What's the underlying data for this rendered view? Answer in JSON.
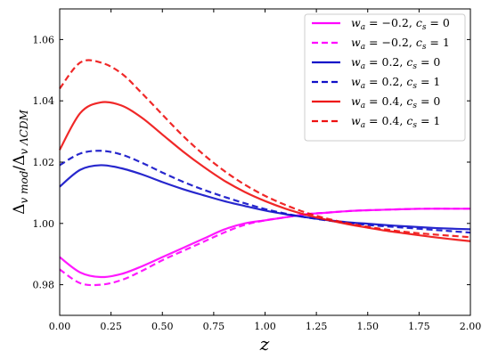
{
  "chart_data": {
    "type": "line",
    "xlabel": "z",
    "ylabel": "Δv mod/Δv ΛCDM",
    "xlim": [
      0.0,
      2.0
    ],
    "ylim": [
      0.97,
      1.07
    ],
    "xticks": [
      "0.00",
      "0.25",
      "0.50",
      "0.75",
      "1.00",
      "1.25",
      "1.50",
      "1.75",
      "2.00"
    ],
    "yticks": [
      "0.98",
      "1.00",
      "1.02",
      "1.04",
      "1.06"
    ],
    "grid": false,
    "legend_position": "top-right",
    "series": [
      {
        "name": "wa = −0.2, cs = 0",
        "color": "#ff00ff",
        "dash": "solid",
        "x": [
          0.0,
          0.1,
          0.2,
          0.3,
          0.4,
          0.5,
          0.6,
          0.7,
          0.8,
          0.9,
          1.0,
          1.1,
          1.2,
          1.3,
          1.4,
          1.5,
          1.6,
          1.7,
          1.8,
          1.9,
          2.0
        ],
        "y": [
          0.989,
          0.984,
          0.9825,
          0.9835,
          0.986,
          0.989,
          0.992,
          0.995,
          0.998,
          1.0,
          1.001,
          1.002,
          1.003,
          1.0035,
          1.004,
          1.0043,
          1.0045,
          1.0047,
          1.0048,
          1.0048,
          1.0048
        ]
      },
      {
        "name": "wa = −0.2, cs = 1",
        "color": "#ff00ff",
        "dash": "dashed",
        "x": [
          0.0,
          0.1,
          0.2,
          0.3,
          0.4,
          0.5,
          0.6,
          0.7,
          0.8,
          0.9,
          1.0,
          1.1,
          1.2,
          1.3,
          1.4,
          1.5,
          1.6,
          1.7,
          1.8,
          1.9,
          2.0
        ],
        "y": [
          0.985,
          0.9805,
          0.98,
          0.9815,
          0.9845,
          0.988,
          0.991,
          0.994,
          0.997,
          0.9995,
          1.001,
          1.002,
          1.003,
          1.0035,
          1.004,
          1.0043,
          1.0045,
          1.0047,
          1.0048,
          1.0048,
          1.0048
        ]
      },
      {
        "name": "wa = 0.2, cs = 0",
        "color": "#1010c8",
        "dash": "solid",
        "x": [
          0.0,
          0.1,
          0.2,
          0.3,
          0.4,
          0.5,
          0.6,
          0.7,
          0.8,
          0.9,
          1.0,
          1.1,
          1.2,
          1.3,
          1.4,
          1.5,
          1.6,
          1.7,
          1.8,
          1.9,
          2.0
        ],
        "y": [
          1.012,
          1.0175,
          1.019,
          1.018,
          1.016,
          1.0135,
          1.0112,
          1.0092,
          1.0073,
          1.0057,
          1.0042,
          1.003,
          1.002,
          1.0011,
          1.0004,
          0.9999,
          0.9994,
          0.999,
          0.9986,
          0.9983,
          0.9981
        ]
      },
      {
        "name": "wa = 0.2, cs = 1",
        "color": "#1010c8",
        "dash": "dashed",
        "x": [
          0.0,
          0.1,
          0.2,
          0.3,
          0.4,
          0.5,
          0.6,
          0.7,
          0.8,
          0.9,
          1.0,
          1.1,
          1.2,
          1.3,
          1.4,
          1.5,
          1.6,
          1.7,
          1.8,
          1.9,
          2.0
        ],
        "y": [
          1.019,
          1.0228,
          1.0237,
          1.0225,
          1.0198,
          1.0166,
          1.0136,
          1.011,
          1.0087,
          1.0066,
          1.0047,
          1.0032,
          1.002,
          1.001,
          1.0002,
          0.9995,
          0.999,
          0.9985,
          0.998,
          0.9975,
          0.997
        ]
      },
      {
        "name": "wa = 0.4, cs = 0",
        "color": "#ee1111",
        "dash": "solid",
        "x": [
          0.0,
          0.1,
          0.2,
          0.3,
          0.4,
          0.5,
          0.6,
          0.7,
          0.8,
          0.9,
          1.0,
          1.1,
          1.2,
          1.3,
          1.4,
          1.5,
          1.6,
          1.7,
          1.8,
          1.9,
          2.0
        ],
        "y": [
          1.024,
          1.036,
          1.0395,
          1.0385,
          1.0345,
          1.029,
          1.0235,
          1.0185,
          1.014,
          1.0103,
          1.0073,
          1.0048,
          1.0028,
          1.0012,
          0.9998,
          0.9986,
          0.9975,
          0.9966,
          0.9957,
          0.9949,
          0.9942
        ]
      },
      {
        "name": "wa = 0.4, cs = 1",
        "color": "#ee1111",
        "dash": "dashed",
        "x": [
          0.0,
          0.1,
          0.2,
          0.3,
          0.4,
          0.5,
          0.6,
          0.7,
          0.8,
          0.9,
          1.0,
          1.1,
          1.2,
          1.3,
          1.4,
          1.5,
          1.6,
          1.7,
          1.8,
          1.9,
          2.0
        ],
        "y": [
          1.044,
          1.0525,
          1.0525,
          1.049,
          1.0425,
          1.0355,
          1.0286,
          1.0225,
          1.0172,
          1.0127,
          1.009,
          1.006,
          1.0035,
          1.0016,
          1.0001,
          0.9989,
          0.9979,
          0.9971,
          0.9965,
          0.996,
          0.9955
        ]
      }
    ],
    "legend": [
      {
        "var1": "w",
        "sub1": "a",
        "val1": " = −0.2, ",
        "var2": "c",
        "sub2": "s",
        "val2": " = 0"
      },
      {
        "var1": "w",
        "sub1": "a",
        "val1": " = −0.2, ",
        "var2": "c",
        "sub2": "s",
        "val2": " = 1"
      },
      {
        "var1": "w",
        "sub1": "a",
        "val1": " = 0.2, ",
        "var2": "c",
        "sub2": "s",
        "val2": " = 0"
      },
      {
        "var1": "w",
        "sub1": "a",
        "val1": " = 0.2, ",
        "var2": "c",
        "sub2": "s",
        "val2": " = 1"
      },
      {
        "var1": "w",
        "sub1": "a",
        "val1": " = 0.4, ",
        "var2": "c",
        "sub2": "s",
        "val2": " = 0"
      },
      {
        "var1": "w",
        "sub1": "a",
        "val1": " = 0.4, ",
        "var2": "c",
        "sub2": "s",
        "val2": " = 1"
      }
    ],
    "ylabel_parts": {
      "main": "Δ",
      "sub": "v mod",
      "slash": "/Δ",
      "sub2": "v ΛCDM"
    }
  }
}
